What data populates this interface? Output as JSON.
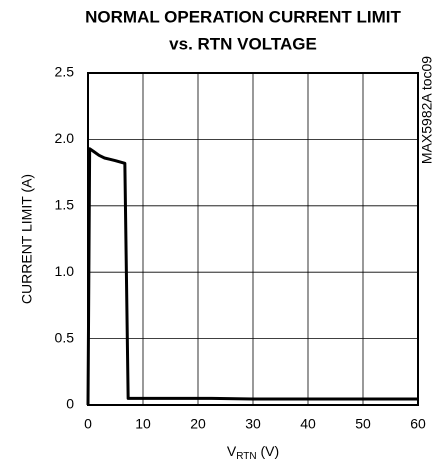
{
  "chart_data": {
    "type": "line",
    "title_lines": [
      "NORMAL OPERATION CURRENT LIMIT",
      "vs. RTN VOLTAGE"
    ],
    "ylabel": "CURRENT LIMIT (A)",
    "xlabel_parts": [
      "V",
      "RTN",
      " (V)"
    ],
    "annotation": "MAX5982A toc09",
    "xlim": [
      0,
      60
    ],
    "ylim": [
      0,
      2.5
    ],
    "xticks": [
      0,
      10,
      20,
      30,
      40,
      50,
      60
    ],
    "yticks": [
      0,
      0.5,
      {
        "value": 1,
        "label": "1.0"
      },
      1.5,
      {
        "value": 2,
        "label": "2.0"
      },
      2.5
    ],
    "grid": true,
    "series": [
      {
        "color": "#000000",
        "x": [
          0,
          0.3,
          1,
          2,
          3,
          4,
          5,
          6.7,
          7.3,
          10,
          22.5,
          30,
          40,
          50,
          60
        ],
        "values": [
          0,
          1.93,
          1.91,
          1.88,
          1.86,
          1.85,
          1.84,
          1.82,
          0.05,
          0.05,
          0.05,
          0.045,
          0.045,
          0.045,
          0.045
        ]
      }
    ]
  }
}
